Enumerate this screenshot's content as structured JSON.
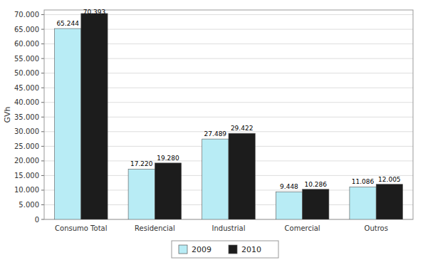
{
  "chart_data": {
    "type": "bar",
    "categories": [
      "Consumo Total",
      "Residencial",
      "Industrial",
      "Comercial",
      "Outros"
    ],
    "series": [
      {
        "name": "2009",
        "color": "#b8ecf5",
        "values": [
          65244,
          17220,
          27489,
          9448,
          11086
        ],
        "value_labels": [
          "65.244",
          "17.220",
          "27.489",
          "9.448",
          "11.086"
        ]
      },
      {
        "name": "2010",
        "color": "#1c1c1c",
        "values": [
          70393,
          19280,
          29422,
          10286,
          12005
        ],
        "value_labels": [
          "70.393",
          "19.280",
          "29.422",
          "10.286",
          "12.005"
        ]
      }
    ],
    "ylabel": "GVh",
    "ylim": [
      0,
      71600
    ],
    "yticks": [
      0,
      {
        "value": 5000,
        "label": "5.000"
      },
      {
        "value": 10000,
        "label": "10.000"
      },
      {
        "value": 15000,
        "label": "15.000"
      },
      {
        "value": 20000,
        "label": "20.000"
      },
      {
        "value": 25000,
        "label": "25.000"
      },
      {
        "value": 30000,
        "label": "30.000"
      },
      {
        "value": 35000,
        "label": "35.000"
      },
      {
        "value": 40000,
        "label": "40.000"
      },
      {
        "value": 45000,
        "label": "45.000"
      },
      {
        "value": 50000,
        "label": "50.000"
      },
      {
        "value": 55000,
        "label": "55.000"
      },
      {
        "value": 60000,
        "label": "60.000"
      },
      {
        "value": 65000,
        "label": "65.000"
      },
      {
        "value": 70000,
        "label": "70.000"
      }
    ],
    "grid": true,
    "legend": "bottom",
    "data_labels": true
  }
}
